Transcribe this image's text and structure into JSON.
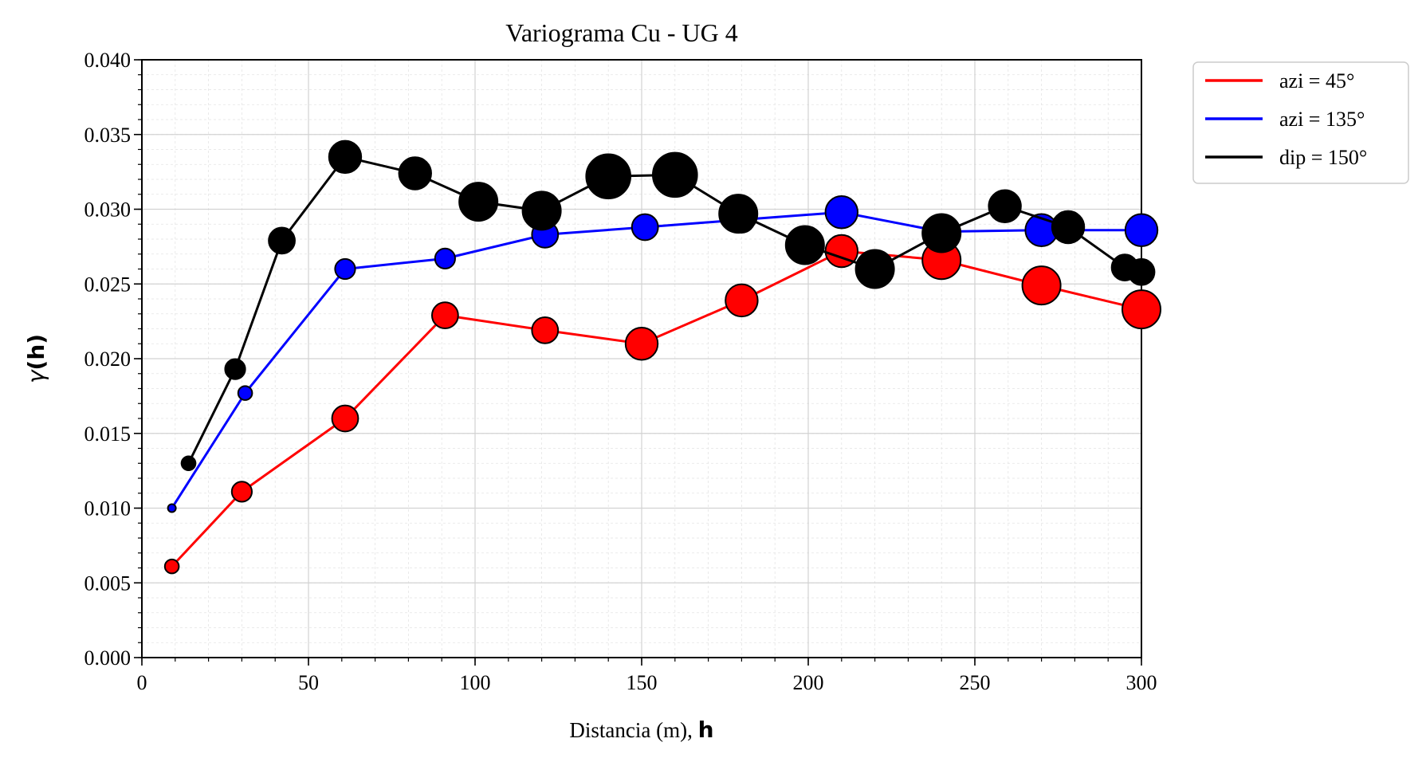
{
  "chart_data": {
    "type": "scatter",
    "title": "Variograma Cu - UG 4",
    "xlabel_prefix": "Distancia (m), ",
    "xlabel_bold": "h",
    "ylabel_gamma": "γ",
    "ylabel_rest": "(h)",
    "xlim": [
      0,
      300
    ],
    "ylim": [
      0,
      0.04
    ],
    "xticks": [
      0,
      50,
      100,
      150,
      200,
      250,
      300
    ],
    "yticks": [
      0.0,
      0.005,
      0.01,
      0.015,
      0.02,
      0.025,
      0.03,
      0.035,
      0.04
    ],
    "xtick_labels": [
      "0",
      "50",
      "100",
      "150",
      "200",
      "250",
      "300"
    ],
    "ytick_labels": [
      "0.000",
      "0.005",
      "0.010",
      "0.015",
      "0.020",
      "0.025",
      "0.030",
      "0.035",
      "0.040"
    ],
    "grid": true,
    "legend_position": "outside-top-right",
    "series": [
      {
        "name": "azi = 45°",
        "color": "#ff0000",
        "x": [
          9,
          30,
          61,
          91,
          121,
          150,
          180,
          210,
          240,
          270,
          300
        ],
        "y": [
          0.0061,
          0.0111,
          0.016,
          0.0229,
          0.0219,
          0.021,
          0.0239,
          0.0272,
          0.0266,
          0.0249,
          0.0233
        ],
        "marker_weight": [
          1,
          2,
          3,
          3,
          3,
          4,
          4,
          4,
          5,
          5,
          5
        ]
      },
      {
        "name": "azi = 135°",
        "color": "#0000ff",
        "x": [
          9,
          31,
          61,
          91,
          121,
          151,
          180,
          210,
          240,
          270,
          300
        ],
        "y": [
          0.01,
          0.0177,
          0.026,
          0.0267,
          0.0283,
          0.0288,
          0.0293,
          0.0298,
          0.0285,
          0.0286,
          0.0286
        ],
        "marker_weight": [
          0,
          1,
          2,
          2,
          3,
          3,
          3,
          4,
          4,
          4,
          4
        ]
      },
      {
        "name": "dip = 150°",
        "color": "#000000",
        "x": [
          14,
          28,
          42,
          61,
          82,
          101,
          120,
          140,
          160,
          179,
          199,
          220,
          240,
          259,
          278,
          295,
          300
        ],
        "y": [
          0.013,
          0.0193,
          0.0279,
          0.0335,
          0.0324,
          0.0305,
          0.0299,
          0.0322,
          0.0323,
          0.0297,
          0.0276,
          0.026,
          0.0284,
          0.0302,
          0.0288,
          0.0261,
          0.0258
        ],
        "marker_weight": [
          1,
          2,
          3,
          4,
          4,
          5,
          5,
          6,
          6,
          5,
          5,
          5,
          5,
          4,
          4,
          3,
          3
        ]
      }
    ]
  }
}
